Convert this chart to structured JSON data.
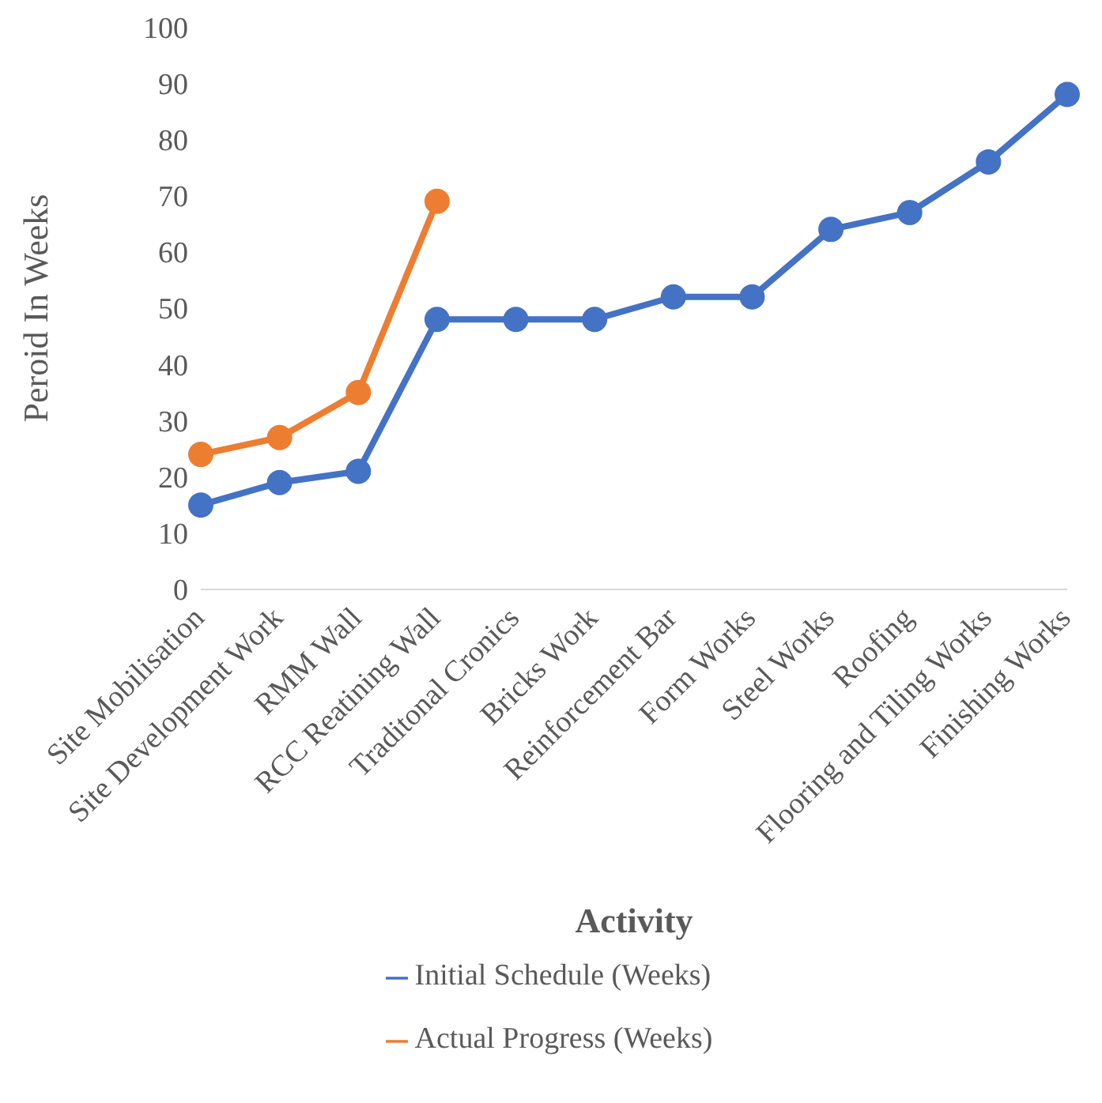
{
  "chart_data": {
    "type": "line",
    "xlabel": "Activity",
    "ylabel": "Peroid In Weeks",
    "categories": [
      "Site Mobilisation",
      "Site Development Work",
      "RMM Wall",
      "RCC Reatining Wall",
      "Traditonal Cronics",
      "Bricks Work",
      "Reinforcement Bar",
      "Form Works",
      "Steel Works",
      "Roofing",
      "Flooring and Tiling Works",
      "Finishing Works"
    ],
    "series": [
      {
        "name": "Initial Schedule (Weeks)",
        "color": "#4472c4",
        "values": [
          15,
          19,
          21,
          48,
          48,
          48,
          52,
          52,
          64,
          67,
          76,
          88
        ]
      },
      {
        "name": "Actual Progress (Weeks)",
        "color": "#ed7d31",
        "values": [
          24,
          27,
          35,
          69,
          null,
          null,
          null,
          null,
          null,
          null,
          null,
          null
        ]
      }
    ],
    "ylim": [
      0,
      100
    ],
    "yticks": [
      0,
      10,
      20,
      30,
      40,
      50,
      60,
      70,
      80,
      90,
      100
    ],
    "legend": "bottom",
    "marker": "circle"
  }
}
